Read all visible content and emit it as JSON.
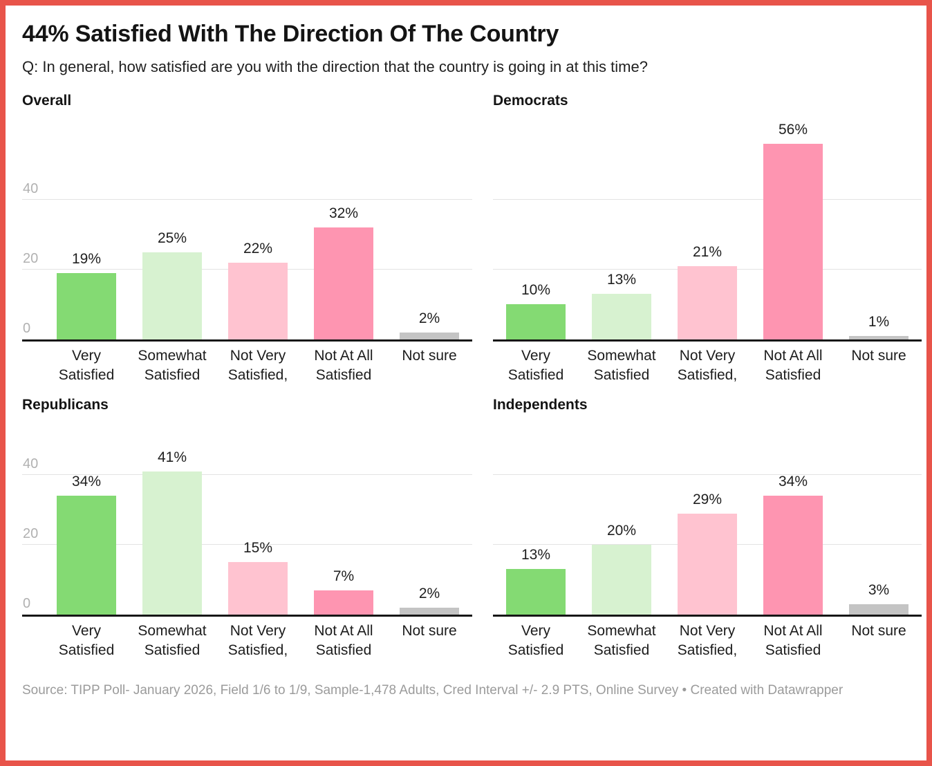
{
  "frame": {
    "border_color": "#e8544a",
    "background_color": "#ffffff"
  },
  "header": {
    "title": "44% Satisfied With The Direction Of The Country",
    "subtitle": "Q: In general, how satisfied are you with the direction that the country is going in at this time?"
  },
  "chart_data": {
    "type": "bar",
    "layout": "small-multiples-2x2",
    "categories": [
      "Very Satisfied",
      "Somewhat Satisfied",
      "Not Very Satisfied,",
      "Not At All Satisfied",
      "Not sure"
    ],
    "category_lines": [
      [
        "Very",
        "Satisfied"
      ],
      [
        "Somewhat",
        "Satisfied"
      ],
      [
        "Not Very",
        "Satisfied,"
      ],
      [
        "Not At All",
        "Satisfied"
      ],
      [
        "Not sure"
      ]
    ],
    "series": [
      {
        "name": "Overall",
        "values": [
          19,
          25,
          22,
          32,
          2
        ],
        "y_ticks_visible": true
      },
      {
        "name": "Democrats",
        "values": [
          10,
          13,
          21,
          56,
          1
        ],
        "y_ticks_visible": false
      },
      {
        "name": "Republicans",
        "values": [
          34,
          41,
          15,
          7,
          2
        ],
        "y_ticks_visible": true
      },
      {
        "name": "Independents",
        "values": [
          13,
          20,
          29,
          34,
          3
        ],
        "y_ticks_visible": false
      }
    ],
    "value_suffix": "%",
    "y_ticks": [
      0,
      20,
      40
    ],
    "ylim": [
      0,
      60
    ],
    "grid": "horizontal",
    "legend": "none",
    "bar_colors": [
      "#84da73",
      "#d7f2d0",
      "#ffc3d0",
      "#fe95b1",
      "#c4c4c4"
    ],
    "axis_colors": {
      "tick_label": "#b1b1b1",
      "gridline": "#e3e3e3",
      "baseline": "#161616"
    }
  },
  "footer": {
    "text": "Source: TIPP Poll- January 2026, Field 1/6 to 1/9, Sample-1,478 Adults, Cred Interval +/- 2.9 PTS, Online Survey • Created with Datawrapper"
  }
}
